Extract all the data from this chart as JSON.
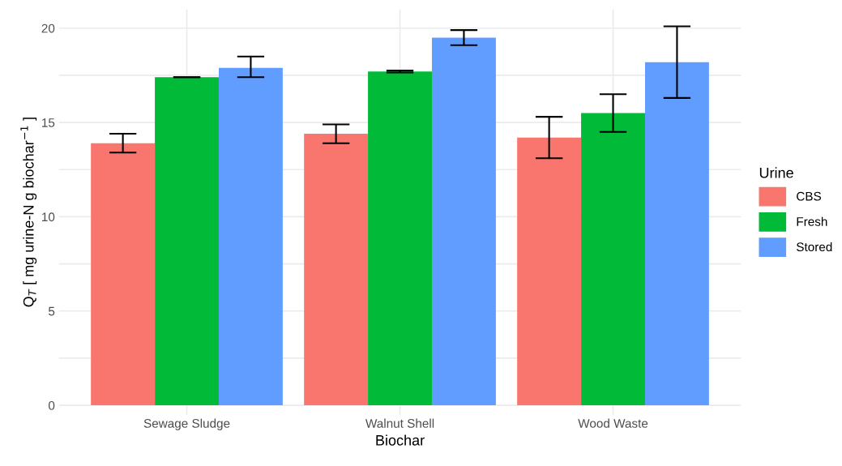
{
  "chart_data": {
    "type": "bar",
    "xlabel": "Biochar",
    "ylabel": "Q$_{T}$ [ mg urine-N g biochar$^{−1}$ ]",
    "legend_title": "Urine",
    "categories": [
      "Sewage Sludge",
      "Walnut Shell",
      "Wood Waste"
    ],
    "series": [
      {
        "name": "CBS",
        "color": "#f8766d",
        "values": [
          13.9,
          14.4,
          14.2
        ],
        "errors": [
          [
            13.4,
            14.4
          ],
          [
            13.9,
            14.9
          ],
          [
            13.1,
            15.3
          ]
        ]
      },
      {
        "name": "Fresh",
        "color": "#00ba38",
        "values": [
          17.4,
          17.7,
          15.5
        ],
        "errors": [
          [
            17.4,
            17.4
          ],
          [
            17.65,
            17.75
          ],
          [
            14.5,
            16.5
          ]
        ]
      },
      {
        "name": "Stored",
        "color": "#619cff",
        "values": [
          17.9,
          19.5,
          18.2
        ],
        "errors": [
          [
            17.4,
            18.5
          ],
          [
            19.1,
            19.9
          ],
          [
            16.3,
            20.1
          ]
        ]
      }
    ],
    "ylim": [
      -0.5,
      21
    ],
    "yticks": [
      0,
      {
        "value": 2.5,
        "label": null
      },
      5,
      {
        "value": 7.5,
        "label": null
      },
      10,
      {
        "value": 12.5,
        "label": null
      },
      15,
      {
        "value": 17.5,
        "label": null
      },
      20
    ],
    "grid": true,
    "legend": "right"
  }
}
